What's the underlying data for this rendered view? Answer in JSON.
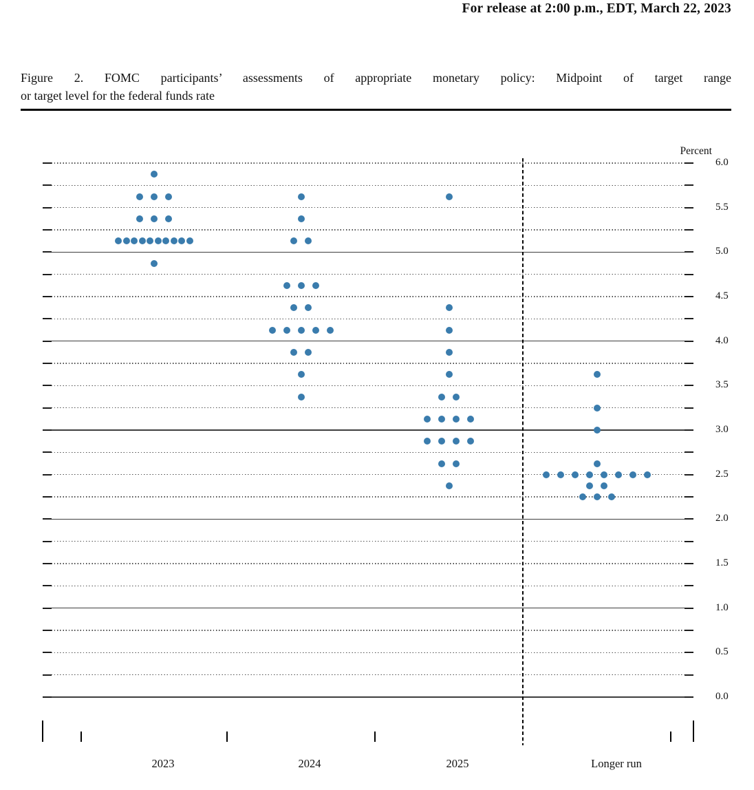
{
  "release_line": "For release at 2:00 p.m., EDT, March 22, 2023",
  "figure_caption": {
    "line1": "Figure 2.  FOMC participants’ assessments of appropriate monetary policy: Midpoint of target range",
    "line2": "or target level for the federal funds rate"
  },
  "chart_data": {
    "type": "scatter",
    "title": "Figure 2. FOMC participants’ assessments of appropriate monetary policy: Midpoint of target range or target level for the federal funds rate",
    "ylabel": "Percent",
    "xlabel": "",
    "ylim": [
      0.0,
      6.0
    ],
    "grid_interval": 0.25,
    "label_interval": 0.5,
    "solid_gridlines_at": [
      0.0,
      1.0,
      2.0,
      3.0,
      4.0,
      5.0
    ],
    "legend_position": "none",
    "dot_color": "#3a7cad",
    "categories": [
      "2023",
      "2024",
      "2025",
      "Longer run"
    ],
    "separator_before_category": "Longer run",
    "ytick_labels": [
      "6.0",
      "5.5",
      "5.0",
      "4.5",
      "4.0",
      "3.5",
      "3.0",
      "2.5",
      "2.0",
      "1.5",
      "1.0",
      "0.5",
      "0.0"
    ],
    "series": [
      {
        "category": "2023",
        "dots": [
          {
            "rate": 5.875,
            "count": 1
          },
          {
            "rate": 5.625,
            "count": 3
          },
          {
            "rate": 5.375,
            "count": 3
          },
          {
            "rate": 5.125,
            "count": 10
          },
          {
            "rate": 4.875,
            "count": 1
          }
        ]
      },
      {
        "category": "2024",
        "dots": [
          {
            "rate": 5.625,
            "count": 1
          },
          {
            "rate": 5.375,
            "count": 1
          },
          {
            "rate": 5.125,
            "count": 2
          },
          {
            "rate": 4.625,
            "count": 3
          },
          {
            "rate": 4.375,
            "count": 2
          },
          {
            "rate": 4.125,
            "count": 5
          },
          {
            "rate": 3.875,
            "count": 2
          },
          {
            "rate": 3.625,
            "count": 1
          },
          {
            "rate": 3.375,
            "count": 1
          }
        ]
      },
      {
        "category": "2025",
        "dots": [
          {
            "rate": 5.625,
            "count": 1
          },
          {
            "rate": 4.375,
            "count": 1
          },
          {
            "rate": 4.125,
            "count": 1
          },
          {
            "rate": 3.875,
            "count": 1
          },
          {
            "rate": 3.625,
            "count": 1
          },
          {
            "rate": 3.375,
            "count": 2
          },
          {
            "rate": 3.125,
            "count": 4
          },
          {
            "rate": 2.875,
            "count": 4
          },
          {
            "rate": 2.625,
            "count": 2
          },
          {
            "rate": 2.375,
            "count": 1
          }
        ]
      },
      {
        "category": "Longer run",
        "dots": [
          {
            "rate": 3.625,
            "count": 1
          },
          {
            "rate": 3.25,
            "count": 1
          },
          {
            "rate": 3.0,
            "count": 1
          },
          {
            "rate": 2.625,
            "count": 1
          },
          {
            "rate": 2.5,
            "count": 8
          },
          {
            "rate": 2.375,
            "count": 2
          },
          {
            "rate": 2.25,
            "count": 3
          }
        ]
      }
    ]
  }
}
